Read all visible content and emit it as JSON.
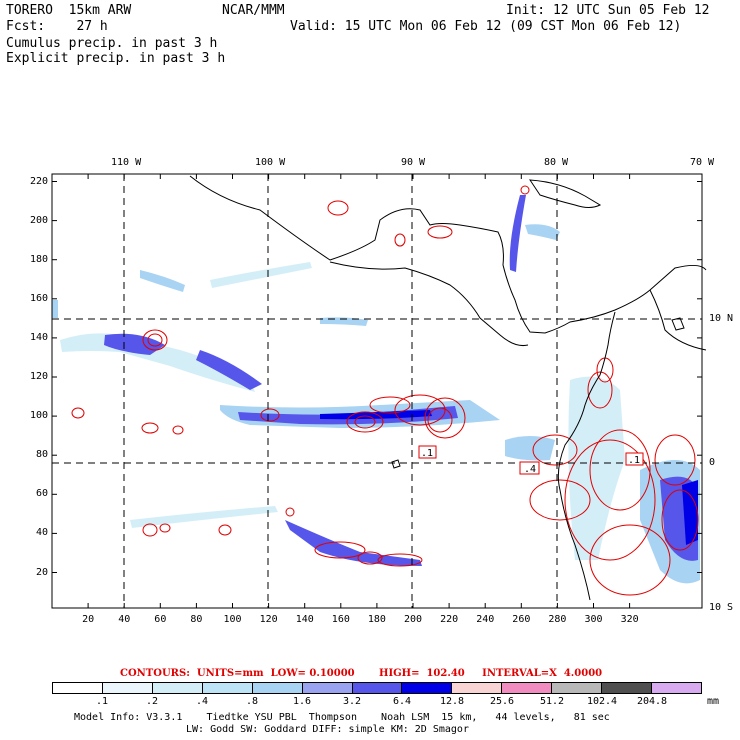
{
  "header": {
    "model": "TORERO  15km ARW",
    "org": "NCAR/MMM",
    "init": "Init: 12 UTC Sun 05 Feb 12",
    "fcst": "Fcst:    27 h",
    "valid": "Valid: 15 UTC Mon 06 Feb 12 (09 CST Mon 06 Feb 12)",
    "cumulus": "Cumulus precip. in past 3 h",
    "explicit": "Explicit precip. in past 3 h"
  },
  "colors": {
    "cumulus": "#1d1d8c",
    "explicit": "#e00000",
    "contour": "#e00000"
  },
  "map": {
    "top_lon_labels": [
      "110 W",
      "100 W",
      "90 W",
      "80 W",
      "70 W"
    ],
    "right_lat_labels": [
      "10 N",
      "0",
      "10 S"
    ],
    "x_ticks": [
      "20",
      "40",
      "60",
      "80",
      "100",
      "120",
      "140",
      "160",
      "180",
      "200",
      "220",
      "240",
      "260",
      "280",
      "300",
      "320"
    ],
    "y_ticks": [
      "220",
      "200",
      "180",
      "160",
      "140",
      "120",
      "100",
      "80",
      "60",
      "40",
      "20"
    ],
    "contour_labels": [
      ".1",
      ".4",
      ".1"
    ]
  },
  "contours_line": {
    "text": "CONTOURS:  UNITS=mm  LOW= 0.10000       HIGH=  102.40     INTERVAL=X  4.0000"
  },
  "legend": {
    "labels": [
      ".1",
      ".2",
      ".4",
      ".8",
      "1.6",
      "3.2",
      "6.4",
      "12.8",
      "25.6",
      "51.2",
      "102.4",
      "204.8"
    ],
    "unit": "mm",
    "colors": [
      "#ffffff",
      "#eaf6fb",
      "#d4eef8",
      "#bde4f6",
      "#a9d3f3",
      "#9aa3f0",
      "#5656ea",
      "#0000e6",
      "#f9d4d4",
      "#f08cbf",
      "#b8b8b8",
      "#505050",
      "#d8aaf0"
    ]
  },
  "footer": {
    "line1": "Model Info: V3.3.1    Tiedtke YSU PBL  Thompson    Noah LSM  15 km,   44 levels,   81 sec",
    "line2": "LW: Godd SW: Goddard DIFF: simple KM: 2D Smagor"
  }
}
